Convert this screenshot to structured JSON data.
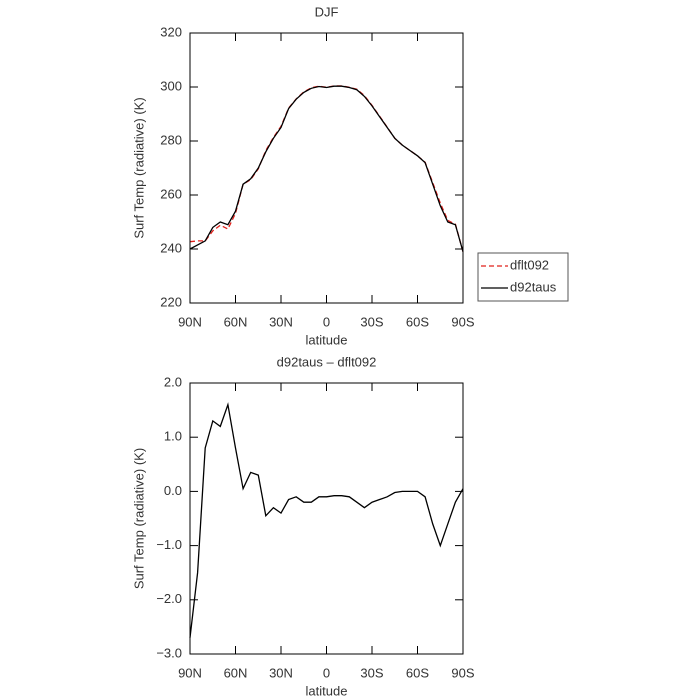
{
  "chart_data": [
    {
      "type": "line",
      "title": "DJF",
      "xlabel": "latitude",
      "ylabel": "Surf Temp (radiative) (K)",
      "x": [
        90,
        85,
        80,
        75,
        70,
        65,
        60,
        55,
        50,
        45,
        40,
        35,
        30,
        25,
        20,
        15,
        10,
        5,
        0,
        -5,
        -10,
        -15,
        -20,
        -25,
        -30,
        -35,
        -40,
        -45,
        -50,
        -55,
        -60,
        -65,
        -70,
        -75,
        -80,
        -85,
        -90
      ],
      "series": [
        {
          "name": "dflt092",
          "color": "#e0201b",
          "dash": true,
          "values": [
            242.7,
            243,
            243,
            246.7,
            248.8,
            247.4,
            253.2,
            264,
            265.7,
            269.7,
            276.5,
            281.3,
            285.4,
            292.2,
            295.6,
            298.2,
            299.7,
            300.3,
            299.9,
            300.4,
            300.4,
            299.9,
            299.2,
            296.8,
            293.2,
            289.2,
            285.1,
            281,
            278.5,
            276.5,
            274.5,
            272.1,
            264.6,
            257,
            250.6,
            249.2,
            239
          ]
        },
        {
          "name": "d92taus",
          "color": "#000000",
          "dash": false,
          "values": [
            240,
            241.5,
            243,
            248,
            250,
            249,
            254,
            264,
            266,
            270,
            276,
            281,
            285,
            292,
            295.5,
            298,
            299.5,
            300.2,
            299.8,
            300.3,
            300.3,
            299.8,
            299,
            296.5,
            293,
            289,
            285,
            281,
            278.5,
            276.5,
            274.5,
            272,
            264,
            256,
            250,
            249,
            239
          ]
        }
      ],
      "xlim": [
        90,
        -90
      ],
      "xticks": [
        {
          "value": 90,
          "label": "90N"
        },
        {
          "value": 60,
          "label": "60N"
        },
        {
          "value": 30,
          "label": "30N"
        },
        0,
        {
          "value": -30,
          "label": "30S"
        },
        {
          "value": -60,
          "label": "60S"
        },
        {
          "value": -90,
          "label": "90S"
        }
      ],
      "ylim": [
        220,
        320
      ],
      "yticks": [
        220,
        240,
        260,
        280,
        300,
        320
      ],
      "legend": "right"
    },
    {
      "type": "line",
      "title": "d92taus – dflt092",
      "xlabel": "latitude",
      "ylabel": "Surf Temp (radiative) (K)",
      "x": [
        90,
        85,
        80,
        75,
        70,
        65,
        60,
        55,
        50,
        45,
        40,
        35,
        30,
        25,
        20,
        15,
        10,
        5,
        0,
        -5,
        -10,
        -15,
        -20,
        -25,
        -30,
        -35,
        -40,
        -45,
        -50,
        -55,
        -60,
        -65,
        -70,
        -75,
        -80,
        -85,
        -90
      ],
      "series": [
        {
          "color": "#000000",
          "dash": false,
          "values": [
            -2.7,
            -1.5,
            0.8,
            1.3,
            1.2,
            1.6,
            0.8,
            0.05,
            0.35,
            0.3,
            -0.45,
            -0.3,
            -0.4,
            -0.15,
            -0.1,
            -0.2,
            -0.2,
            -0.1,
            -0.1,
            -0.08,
            -0.08,
            -0.1,
            -0.2,
            -0.3,
            -0.2,
            -0.15,
            -0.1,
            -0.02,
            0,
            0,
            0,
            -0.1,
            -0.6,
            -1,
            -0.6,
            -0.2,
            0.05
          ]
        }
      ],
      "xlim": [
        90,
        -90
      ],
      "xticks": [
        {
          "value": 90,
          "label": "90N"
        },
        {
          "value": 60,
          "label": "60N"
        },
        {
          "value": 30,
          "label": "30N"
        },
        0,
        {
          "value": -30,
          "label": "30S"
        },
        {
          "value": -60,
          "label": "60S"
        },
        {
          "value": -90,
          "label": "90S"
        }
      ],
      "ylim": [
        -3,
        2
      ],
      "yticks": [
        {
          "value": -3,
          "label": "−3.0"
        },
        {
          "value": -2,
          "label": "−2.0"
        },
        {
          "value": -1,
          "label": "−1.0"
        },
        {
          "value": 0,
          "label": "0.0"
        },
        {
          "value": 1,
          "label": "1.0"
        },
        {
          "value": 2,
          "label": "2.0"
        }
      ]
    }
  ]
}
